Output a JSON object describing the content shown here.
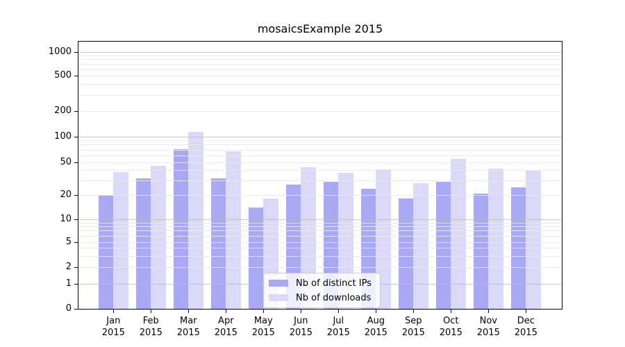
{
  "figure": {
    "background": "#ffffff"
  },
  "chart_data": {
    "type": "bar",
    "title": "mosaicsExample 2015",
    "year_label": "2015",
    "categories": [
      "Jan",
      "Feb",
      "Mar",
      "Apr",
      "May",
      "Jun",
      "Jul",
      "Aug",
      "Sep",
      "Oct",
      "Nov",
      "Dec"
    ],
    "series": [
      {
        "name": "Nb of distinct IPs",
        "color": "#a8a8f3",
        "values": [
          20,
          32,
          72,
          32,
          14,
          27,
          29,
          24,
          18,
          29,
          21,
          25
        ]
      },
      {
        "name": "Nb of downloads",
        "color": "#dadaf8",
        "values": [
          38,
          45,
          114,
          68,
          18,
          44,
          37,
          41,
          28,
          55,
          42,
          40
        ]
      }
    ],
    "yscale": "symlog",
    "y_ticks": [
      0,
      1,
      2,
      5,
      10,
      20,
      50,
      100,
      200,
      500,
      1000
    ],
    "ylim": [
      0,
      1300
    ],
    "xlabel": "",
    "ylabel": "",
    "grid": "horizontal, major and minor, drawn over bars",
    "legend_position": "lower center inside plot"
  },
  "colors": {
    "major_grid": "#bdbdbd",
    "minor_grid": "#e9e9e9",
    "axis": "#000000",
    "series_dark": "#a8a8f3",
    "series_light": "#dadaf8"
  }
}
